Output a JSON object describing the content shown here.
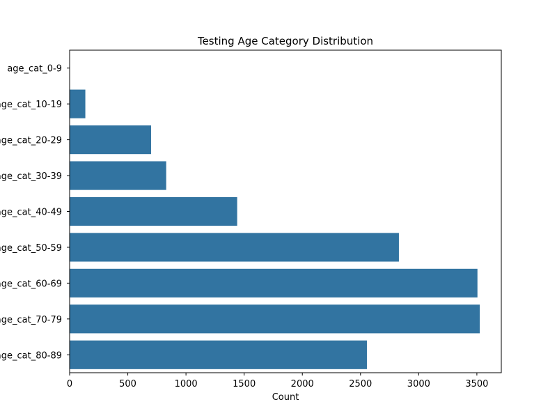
{
  "chart_data": {
    "type": "bar",
    "orientation": "horizontal",
    "title": "Testing Age Category Distribution",
    "xlabel": "Count",
    "ylabel": "",
    "categories": [
      "age_cat_0-9",
      "age_cat_10-19",
      "age_cat_20-29",
      "age_cat_30-39",
      "age_cat_40-49",
      "age_cat_50-59",
      "age_cat_60-69",
      "age_cat_70-79",
      "age_cat_80-89"
    ],
    "values": [
      0,
      135,
      700,
      830,
      1440,
      2830,
      3505,
      3525,
      2555
    ],
    "xlim": [
      0,
      3710
    ],
    "xticks": [
      0,
      500,
      1000,
      1500,
      2000,
      2500,
      3000,
      3500
    ],
    "xtick_labels": [
      "0",
      "500",
      "1000",
      "1500",
      "2000",
      "2500",
      "3000",
      "3500"
    ],
    "grid": false,
    "bar_color": "#3274a1"
  }
}
